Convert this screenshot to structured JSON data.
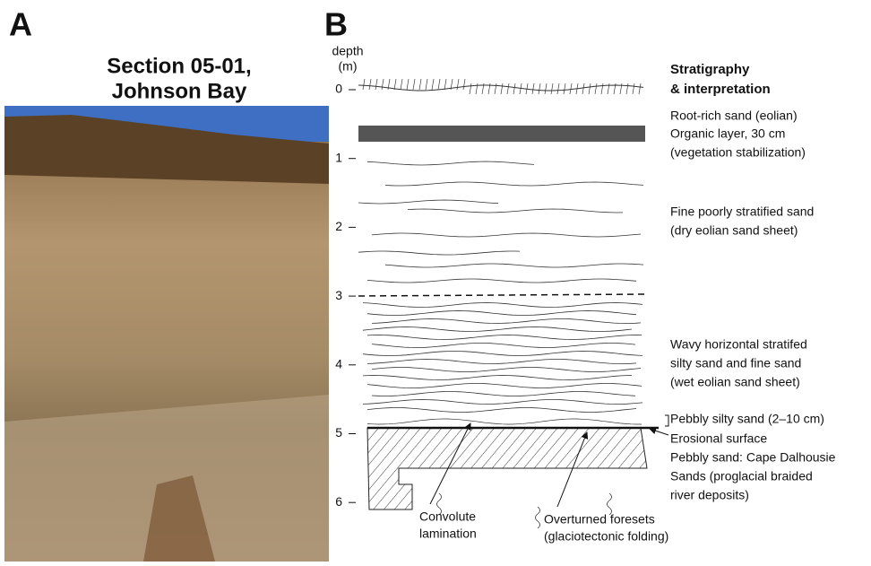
{
  "panel_a": {
    "label": "A",
    "title": [
      "Section 05-01,",
      "Johnson Bay"
    ]
  },
  "panel_b": {
    "label": "B",
    "depth_label": [
      "depth",
      "(m)"
    ],
    "depth_ticks": [
      "0",
      "1",
      "2",
      "3",
      "4",
      "5",
      "6"
    ],
    "heading": [
      "Stratigraphy",
      "& interpretation"
    ],
    "units": [
      [
        "Root-rich sand (eolian)"
      ],
      [
        "Organic layer, 30 cm",
        "(vegetation stabilization)"
      ],
      [
        "Fine poorly stratified sand",
        "(dry eolian sand sheet)"
      ],
      [
        "Wavy horizontal stratifed",
        "silty sand and fine sand",
        "(wet eolian sand sheet)"
      ],
      [
        "Pebbly silty sand (2–10 cm)"
      ],
      [
        "Erosional surface"
      ],
      [
        "Pebbly sand: Cape Dalhousie",
        "Sands (proglacial braided",
        "river deposits)"
      ]
    ],
    "callouts": [
      [
        "Convolute",
        "lamination"
      ],
      [
        "Overturned foresets",
        "(glaciotectonic folding)"
      ]
    ]
  }
}
